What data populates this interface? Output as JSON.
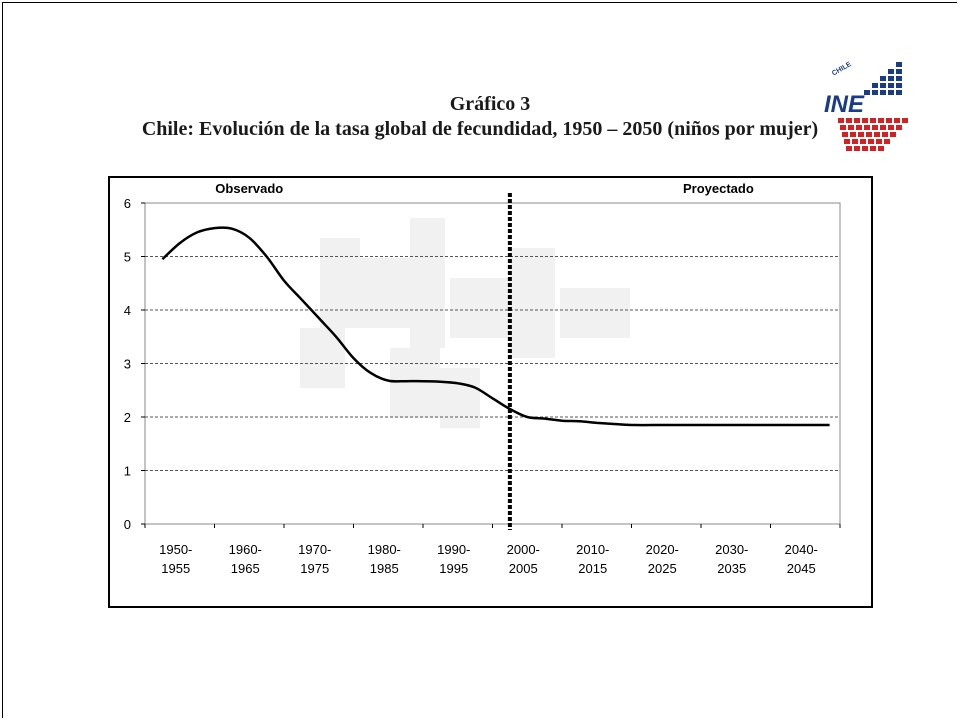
{
  "title": {
    "line1": "Gráfico 3",
    "line2": "Chile: Evolución de la tasa global de fecundidad, 1950 – 2050 (niños por mujer)"
  },
  "logo": {
    "text": "INE",
    "country": "CHILE",
    "colors": {
      "blue": "#1a3a8a",
      "red": "#d42020"
    }
  },
  "chart_data": {
    "type": "line",
    "title": "",
    "xlabel": "",
    "ylabel": "",
    "ylim": [
      0,
      6
    ],
    "yticks": [
      0,
      1,
      2,
      3,
      4,
      5,
      6
    ],
    "grid": "horizontal-dashed",
    "categories": [
      [
        "1950-",
        "1955"
      ],
      [
        "1960-",
        "1965"
      ],
      [
        "1970-",
        "1975"
      ],
      [
        "1980-",
        "1985"
      ],
      [
        "1990-",
        "1995"
      ],
      [
        "2000-",
        "2005"
      ],
      [
        "2010-",
        "2015"
      ],
      [
        "2020-",
        "2025"
      ],
      [
        "2030-",
        "2035"
      ],
      [
        "2040-",
        "2045"
      ]
    ],
    "x_range": [
      1950,
      2050
    ],
    "divider_x": 2002.5,
    "regions": [
      {
        "label": "Observado",
        "center_x": 1965
      },
      {
        "label": "Proyectado",
        "center_x": 2032.5
      }
    ],
    "series": [
      {
        "color": "#000000",
        "points": [
          [
            1952.5,
            4.95
          ],
          [
            1955,
            5.25
          ],
          [
            1957.5,
            5.45
          ],
          [
            1960,
            5.53
          ],
          [
            1962.5,
            5.52
          ],
          [
            1965,
            5.35
          ],
          [
            1967.5,
            5.0
          ],
          [
            1970,
            4.55
          ],
          [
            1972.5,
            4.2
          ],
          [
            1975,
            3.85
          ],
          [
            1977.5,
            3.5
          ],
          [
            1980,
            3.1
          ],
          [
            1982.5,
            2.82
          ],
          [
            1985,
            2.68
          ],
          [
            1987.5,
            2.67
          ],
          [
            1990,
            2.67
          ],
          [
            1992.5,
            2.66
          ],
          [
            1995,
            2.63
          ],
          [
            1997.5,
            2.55
          ],
          [
            2000,
            2.35
          ],
          [
            2002.5,
            2.15
          ],
          [
            2005,
            2.0
          ],
          [
            2007.5,
            1.97
          ],
          [
            2010,
            1.93
          ],
          [
            2012.5,
            1.92
          ],
          [
            2015,
            1.89
          ],
          [
            2017.5,
            1.87
          ],
          [
            2020,
            1.85
          ],
          [
            2025,
            1.85
          ],
          [
            2030,
            1.85
          ],
          [
            2035,
            1.85
          ],
          [
            2040,
            1.85
          ],
          [
            2045,
            1.85
          ],
          [
            2048.5,
            1.85
          ]
        ]
      }
    ]
  }
}
